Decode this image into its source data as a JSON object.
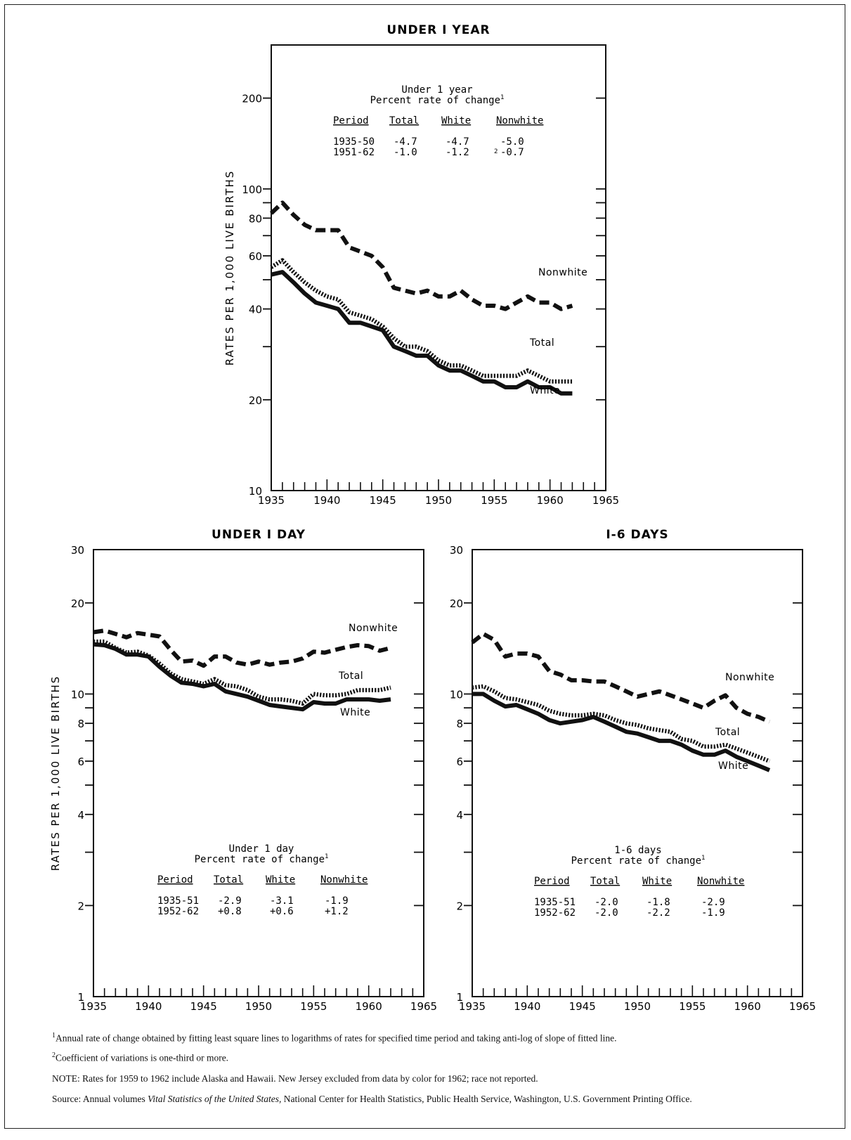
{
  "chart_data": [
    {
      "type": "line",
      "title": "UNDER I YEAR",
      "ylabel": "RATES PER 1,000 LIVE BIRTHS",
      "xlabel": "",
      "yscale": "log",
      "xlim": [
        1935,
        1965
      ],
      "ylim": [
        10,
        300
      ],
      "x_ticks": [
        1935,
        1940,
        1945,
        1950,
        1955,
        1960,
        1965
      ],
      "y_tick_labels": [
        10,
        20,
        40,
        60,
        80,
        100,
        200
      ],
      "x": [
        1935,
        1936,
        1937,
        1938,
        1939,
        1940,
        1941,
        1942,
        1943,
        1944,
        1945,
        1946,
        1947,
        1948,
        1949,
        1950,
        1951,
        1952,
        1953,
        1954,
        1955,
        1956,
        1957,
        1958,
        1959,
        1960,
        1961,
        1962
      ],
      "series": [
        {
          "name": "Nonwhite",
          "style": "dashed",
          "values": [
            83,
            90,
            82,
            76,
            73,
            73,
            73,
            64,
            62,
            60,
            55,
            47,
            46,
            45,
            46,
            44,
            44,
            46,
            43,
            41,
            41,
            40,
            42,
            44,
            42,
            42,
            40,
            41
          ]
        },
        {
          "name": "Total",
          "style": "dotted",
          "values": [
            55,
            58,
            53,
            49,
            46,
            44,
            43,
            39,
            38,
            37,
            35,
            32,
            30,
            30,
            29,
            27,
            26,
            26,
            25,
            24,
            24,
            24,
            24,
            25,
            24,
            23,
            23,
            23
          ]
        },
        {
          "name": "White",
          "style": "solid",
          "values": [
            52,
            53,
            49,
            45,
            42,
            41,
            40,
            36,
            36,
            35,
            34,
            30,
            29,
            28,
            28,
            26,
            25,
            25,
            24,
            23,
            23,
            22,
            22,
            23,
            22,
            22,
            21,
            21
          ]
        }
      ],
      "inset_table": {
        "title": "Under 1 year",
        "subtitle": "Percent rate of change",
        "sup": "1",
        "headers": [
          "Period",
          "Total",
          "White",
          "Nonwhite"
        ],
        "rows": [
          [
            "1935-50",
            "-4.7",
            "-4.7",
            "-5.0"
          ],
          [
            "1951-62",
            "-1.0",
            "-1.2",
            "-0.7"
          ]
        ],
        "note_mark": "2"
      }
    },
    {
      "type": "line",
      "title": "UNDER I DAY",
      "ylabel": "RATES PER 1,000 LIVE BIRTHS",
      "xlabel": "",
      "yscale": "log",
      "xlim": [
        1935,
        1965
      ],
      "ylim": [
        1,
        30
      ],
      "x_ticks": [
        1935,
        1940,
        1945,
        1950,
        1955,
        1960,
        1965
      ],
      "y_tick_labels": [
        1,
        2,
        4,
        6,
        8,
        10,
        20,
        30
      ],
      "x": [
        1935,
        1936,
        1937,
        1938,
        1939,
        1940,
        1941,
        1942,
        1943,
        1944,
        1945,
        1946,
        1947,
        1948,
        1949,
        1950,
        1951,
        1952,
        1953,
        1954,
        1955,
        1956,
        1957,
        1958,
        1959,
        1960,
        1961,
        1962
      ],
      "series": [
        {
          "name": "Nonwhite",
          "style": "dashed",
          "values": [
            16.0,
            16.2,
            15.8,
            15.4,
            15.9,
            15.7,
            15.5,
            14.0,
            12.8,
            12.9,
            12.4,
            13.3,
            13.3,
            12.7,
            12.5,
            12.8,
            12.5,
            12.7,
            12.8,
            13.1,
            13.8,
            13.7,
            14.0,
            14.3,
            14.5,
            14.4,
            13.9,
            14.2
          ]
        },
        {
          "name": "Total",
          "style": "dotted",
          "values": [
            14.9,
            14.9,
            14.2,
            13.7,
            13.8,
            13.4,
            12.6,
            11.7,
            11.2,
            11.0,
            10.8,
            11.2,
            10.7,
            10.6,
            10.3,
            9.8,
            9.6,
            9.6,
            9.5,
            9.3,
            10.0,
            9.9,
            9.9,
            10.0,
            10.3,
            10.3,
            10.3,
            10.5
          ]
        },
        {
          "name": "White",
          "style": "solid",
          "values": [
            14.6,
            14.5,
            14.1,
            13.5,
            13.5,
            13.3,
            12.3,
            11.5,
            10.9,
            10.8,
            10.6,
            10.8,
            10.2,
            10.0,
            9.8,
            9.5,
            9.2,
            9.1,
            9.0,
            8.9,
            9.4,
            9.3,
            9.3,
            9.6,
            9.6,
            9.6,
            9.5,
            9.6
          ]
        }
      ],
      "inset_table": {
        "title": "Under 1 day",
        "subtitle": "Percent rate of change",
        "sup": "1",
        "headers": [
          "Period",
          "Total",
          "White",
          "Nonwhite"
        ],
        "rows": [
          [
            "1935-51",
            "-2.9",
            "-3.1",
            "-1.9"
          ],
          [
            "1952-62",
            "+0.8",
            "+0.6",
            "+1.2"
          ]
        ]
      }
    },
    {
      "type": "line",
      "title": "I-6 DAYS",
      "ylabel": "",
      "xlabel": "",
      "yscale": "log",
      "xlim": [
        1935,
        1965
      ],
      "ylim": [
        1,
        30
      ],
      "x_ticks": [
        1935,
        1940,
        1945,
        1950,
        1955,
        1960,
        1965
      ],
      "y_tick_labels": [
        1,
        2,
        4,
        6,
        8,
        10,
        20,
        30
      ],
      "x": [
        1935,
        1936,
        1937,
        1938,
        1939,
        1940,
        1941,
        1942,
        1943,
        1944,
        1945,
        1946,
        1947,
        1948,
        1949,
        1950,
        1951,
        1952,
        1953,
        1954,
        1955,
        1956,
        1957,
        1958,
        1959,
        1960,
        1961,
        1962
      ],
      "series": [
        {
          "name": "Nonwhite",
          "style": "dashed",
          "values": [
            14.8,
            15.8,
            15.1,
            13.3,
            13.6,
            13.6,
            13.3,
            11.9,
            11.6,
            11.1,
            11.1,
            11.0,
            11.0,
            10.6,
            10.2,
            9.8,
            10.0,
            10.2,
            9.9,
            9.6,
            9.3,
            9.0,
            9.5,
            9.9,
            9.0,
            8.6,
            8.4,
            8.1
          ]
        },
        {
          "name": "Total",
          "style": "dotted",
          "values": [
            10.5,
            10.6,
            10.2,
            9.7,
            9.6,
            9.4,
            9.2,
            8.8,
            8.6,
            8.5,
            8.5,
            8.6,
            8.5,
            8.2,
            8.0,
            7.9,
            7.7,
            7.6,
            7.5,
            7.1,
            7.0,
            6.7,
            6.7,
            6.8,
            6.6,
            6.4,
            6.2,
            6.0
          ]
        },
        {
          "name": "White",
          "style": "solid",
          "values": [
            10.0,
            10.0,
            9.5,
            9.1,
            9.2,
            8.9,
            8.6,
            8.2,
            8.0,
            8.1,
            8.2,
            8.4,
            8.1,
            7.8,
            7.5,
            7.4,
            7.2,
            7.0,
            7.0,
            6.8,
            6.5,
            6.3,
            6.3,
            6.5,
            6.2,
            6.0,
            5.8,
            5.6
          ]
        }
      ],
      "inset_table": {
        "title": "1-6 days",
        "subtitle": "Percent rate of change",
        "sup": "1",
        "headers": [
          "Period",
          "Total",
          "White",
          "Nonwhite"
        ],
        "rows": [
          [
            "1935-51",
            "-2.0",
            "-1.8",
            "-2.9"
          ],
          [
            "1952-62",
            "-2.0",
            "-2.2",
            "-1.9"
          ]
        ]
      }
    }
  ],
  "footnotes": {
    "fn1_mark": "1",
    "fn1_text": "Annual rate of change obtained by fitting least square lines to logarithms of rates for specified time period and taking anti-log of slope of fitted line.",
    "fn2_mark": "2",
    "fn2_text": "Coefficient of variations is one-third or more.",
    "note": "NOTE: Rates for 1959 to 1962 include Alaska and Hawaii. New Jersey excluded from data by color for 1962; race not reported.",
    "source_prefix": "Source: Annual volumes ",
    "source_italic": "Vital Statistics of the United States,",
    "source_suffix": " National Center for Health Statistics, Public Health Service, Washington, U.S. Government Printing Office."
  }
}
